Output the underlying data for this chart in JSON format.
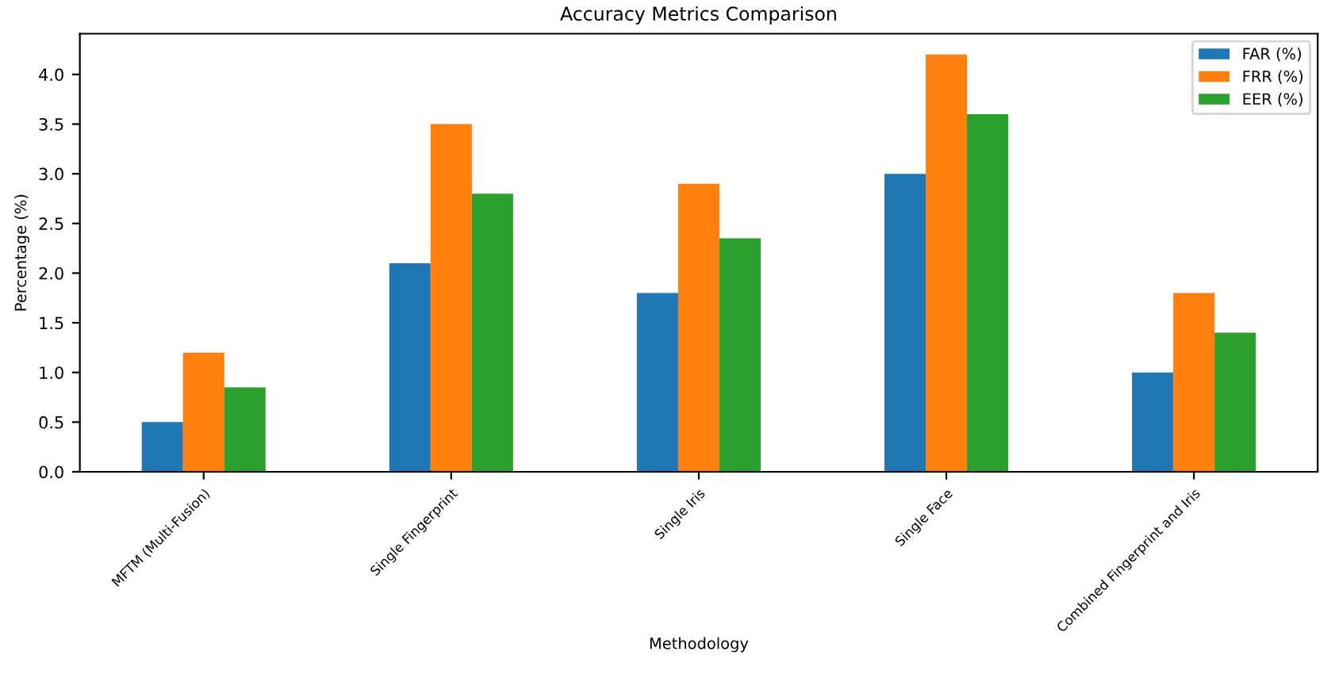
{
  "chart_data": {
    "type": "bar",
    "title": "Accuracy Metrics Comparison",
    "xlabel": "Methodology",
    "ylabel": "Percentage (%)",
    "categories": [
      "MFTM (Multi-Fusion)",
      "Single Fingerprint",
      "Single Iris",
      "Single Face",
      "Combined Fingerprint and Iris"
    ],
    "series": [
      {
        "name": "FAR (%)",
        "color": "#1f77b4",
        "values": [
          0.5,
          2.1,
          1.8,
          3.0,
          1.0
        ]
      },
      {
        "name": "FRR (%)",
        "color": "#ff7f0e",
        "values": [
          1.2,
          3.5,
          2.9,
          4.2,
          1.8
        ]
      },
      {
        "name": "EER (%)",
        "color": "#2ca02c",
        "values": [
          0.85,
          2.8,
          2.35,
          3.6,
          1.4
        ]
      }
    ],
    "ylim": [
      0,
      4.41
    ],
    "yticks": [
      {
        "value": 0,
        "label": "0.0"
      },
      0.5,
      {
        "value": 1,
        "label": "1.0"
      },
      1.5,
      {
        "value": 2,
        "label": "2.0"
      },
      2.5,
      {
        "value": 3,
        "label": "3.0"
      },
      3.5,
      {
        "value": 4,
        "label": "4.0"
      }
    ],
    "grid": false,
    "legend": "top right"
  }
}
